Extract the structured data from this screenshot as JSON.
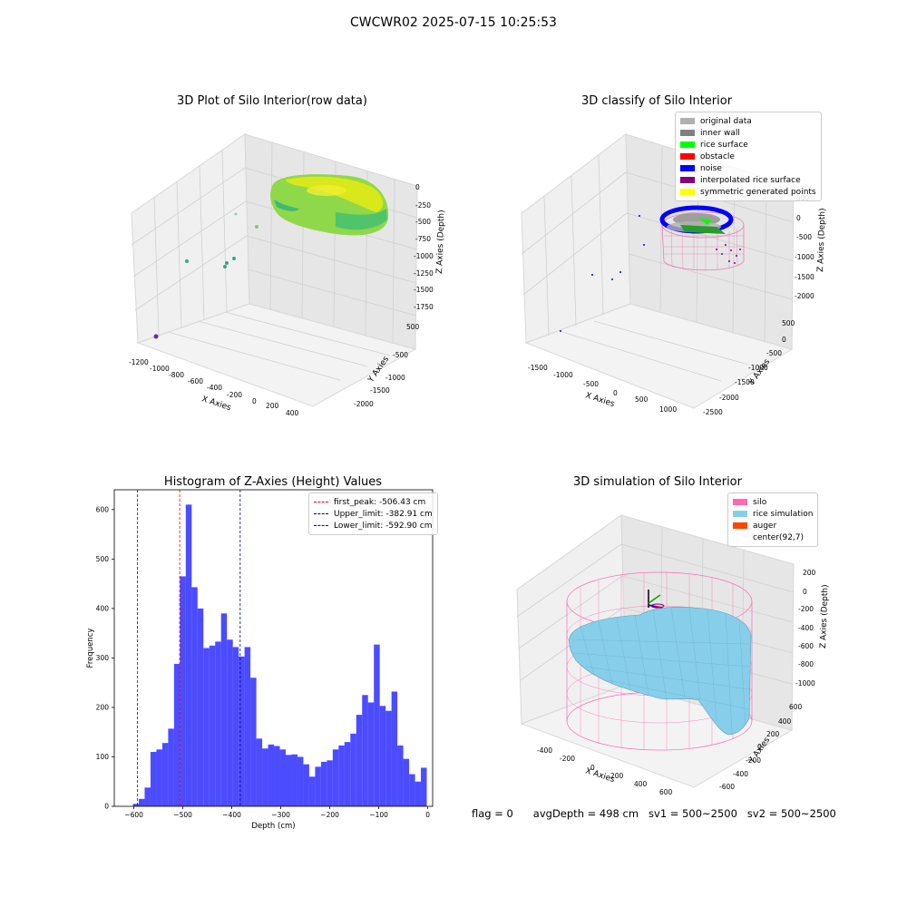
{
  "page": {
    "suptitle": "CWCWR02 2025-07-15 10:25:53"
  },
  "panels": {
    "raw": {
      "title": "3D Plot of Silo Interior(row data)",
      "xlabel": "X Axies",
      "ylabel": "Y Axies",
      "zlabel": "Z Axies (Depth)",
      "xticks": [
        "-1200",
        "-1000",
        "-800",
        "-600",
        "-400",
        "-200",
        "0",
        "200",
        "400"
      ],
      "yticks": [
        "500",
        "0",
        "-500",
        "-1000",
        "-1500",
        "-2000",
        "-2500"
      ],
      "zticks": [
        "0",
        "-250",
        "-500",
        "-750",
        "-1000",
        "-1250",
        "-1500",
        "-1750"
      ]
    },
    "classify": {
      "title": "3D classify of Silo Interior",
      "xlabel": "X Axies",
      "ylabel": "Y Axies",
      "zlabel": "Z Axies (Depth)",
      "xticks": [
        "-1500",
        "-1000",
        "-500",
        "0",
        "500",
        "1000"
      ],
      "yticks": [
        "500",
        "0",
        "-500",
        "-1000",
        "-1500",
        "-2000",
        "-2500"
      ],
      "zticks": [
        "500",
        "0",
        "-500",
        "-1000",
        "-1500",
        "-2000"
      ],
      "legend": [
        {
          "label": "original data",
          "color": "#b0b0b0"
        },
        {
          "label": "inner wall",
          "color": "#808080"
        },
        {
          "label": "rice surface",
          "color": "#00ff00"
        },
        {
          "label": "obstacle",
          "color": "#ff0000"
        },
        {
          "label": "noise",
          "color": "#0000ff"
        },
        {
          "label": "interpolated rice surface",
          "color": "#800080"
        },
        {
          "label": "symmetric generated points",
          "color": "#ffff00"
        }
      ]
    },
    "simulation": {
      "title": "3D simulation of Silo Interior",
      "xlabel": "X Axies",
      "ylabel": "Y Axies",
      "zlabel": "Z Axies (Depth)",
      "xticks": [
        "-400",
        "-200",
        "0",
        "200",
        "400",
        "600"
      ],
      "yticks": [
        "600",
        "400",
        "200",
        "0",
        "-200",
        "-400",
        "-600"
      ],
      "zticks": [
        "200",
        "0",
        "-200",
        "-400",
        "-600",
        "-800",
        "-1000"
      ],
      "legend": [
        {
          "label": "silo",
          "color": "#ff69b4"
        },
        {
          "label": "rice simulation",
          "color": "#87ceeb"
        },
        {
          "label": "auger",
          "color": "#ff4500"
        },
        {
          "label": "center(92,7)",
          "color": ""
        }
      ]
    }
  },
  "chart_data": {
    "type": "bar",
    "title": "Histogram of Z-Axies (Height) Values",
    "xlabel": "Depth (cm)",
    "ylabel": "Frequency",
    "xlim": [
      -640,
      10
    ],
    "ylim": [
      0,
      640
    ],
    "xticks": [
      -600,
      -500,
      -400,
      -300,
      -200,
      -100,
      0
    ],
    "yticks": [
      0,
      100,
      200,
      300,
      400,
      500,
      600
    ],
    "bar_color": "#0000ff",
    "bin_width": 12,
    "bin_start": -602,
    "values": [
      5,
      15,
      38,
      110,
      115,
      128,
      157,
      288,
      465,
      610,
      443,
      400,
      320,
      325,
      333,
      390,
      337,
      322,
      303,
      322,
      260,
      137,
      117,
      125,
      122,
      115,
      104,
      105,
      100,
      85,
      60,
      80,
      90,
      93,
      115,
      123,
      130,
      147,
      185,
      225,
      210,
      327,
      203,
      193,
      232,
      123,
      96,
      65,
      50,
      78
    ],
    "lines": [
      {
        "label": "first_peak: -506.43 cm",
        "x": -506.43,
        "color": "#ff0000"
      },
      {
        "label": "Upper_limit: -382.91 cm",
        "x": -382.91,
        "color": "#00008b"
      },
      {
        "label": "Lower_limit: -592.90 cm",
        "x": -592.9,
        "color": "#0000ff"
      }
    ]
  },
  "footer": {
    "flag": "flag = 0",
    "avg": "avgDepth = 498 cm",
    "sv1": "sv1 = 500~2500",
    "sv2": "sv2 = 500~2500"
  }
}
